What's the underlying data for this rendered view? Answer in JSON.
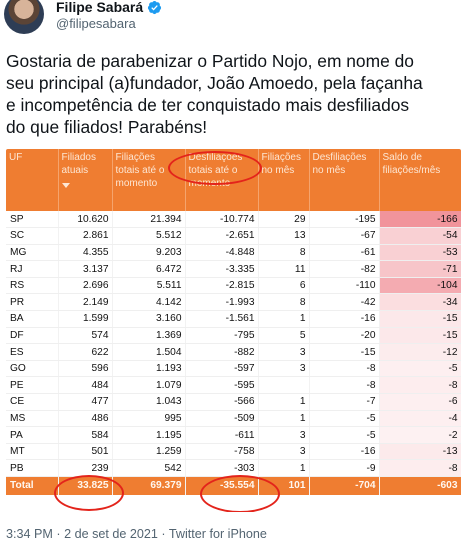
{
  "tweet": {
    "author_name": "Filipe Sabará",
    "author_handle": "@filipesabara",
    "text_lines": [
      "Gostaria de parabenizar o Partido Nojo, em nome do",
      "seu principal (a)fundador, João Amoedo, pela façanha",
      "e incompetência de ter conquistado mais desfiliados",
      "do que filiados! Parabéns!"
    ],
    "timestamp": "3:34 PM · 2 de set de 2021 · Twitter for iPhone",
    "verified_icon": "verified-badge-icon"
  },
  "table": {
    "headers": [
      "UF",
      "Filiados atuais",
      "Filiações totais até o momento",
      "Desfiliações totais até o momento",
      "Filiações no mês",
      "Desfiliações no mês",
      "Saldo de filiações/mês"
    ],
    "rows": [
      {
        "uf": "SP",
        "filiados": "10.620",
        "filiacoes": "21.394",
        "desfiliacoes": "-10.774",
        "fil_mes": "29",
        "desf_mes": "-195",
        "saldo": "-166"
      },
      {
        "uf": "SC",
        "filiados": "2.861",
        "filiacoes": "5.512",
        "desfiliacoes": "-2.651",
        "fil_mes": "13",
        "desf_mes": "-67",
        "saldo": "-54"
      },
      {
        "uf": "MG",
        "filiados": "4.355",
        "filiacoes": "9.203",
        "desfiliacoes": "-4.848",
        "fil_mes": "8",
        "desf_mes": "-61",
        "saldo": "-53"
      },
      {
        "uf": "RJ",
        "filiados": "3.137",
        "filiacoes": "6.472",
        "desfiliacoes": "-3.335",
        "fil_mes": "11",
        "desf_mes": "-82",
        "saldo": "-71"
      },
      {
        "uf": "RS",
        "filiados": "2.696",
        "filiacoes": "5.511",
        "desfiliacoes": "-2.815",
        "fil_mes": "6",
        "desf_mes": "-110",
        "saldo": "-104"
      },
      {
        "uf": "PR",
        "filiados": "2.149",
        "filiacoes": "4.142",
        "desfiliacoes": "-1.993",
        "fil_mes": "8",
        "desf_mes": "-42",
        "saldo": "-34"
      },
      {
        "uf": "BA",
        "filiados": "1.599",
        "filiacoes": "3.160",
        "desfiliacoes": "-1.561",
        "fil_mes": "1",
        "desf_mes": "-16",
        "saldo": "-15"
      },
      {
        "uf": "DF",
        "filiados": "574",
        "filiacoes": "1.369",
        "desfiliacoes": "-795",
        "fil_mes": "5",
        "desf_mes": "-20",
        "saldo": "-15"
      },
      {
        "uf": "ES",
        "filiados": "622",
        "filiacoes": "1.504",
        "desfiliacoes": "-882",
        "fil_mes": "3",
        "desf_mes": "-15",
        "saldo": "-12"
      },
      {
        "uf": "GO",
        "filiados": "596",
        "filiacoes": "1.193",
        "desfiliacoes": "-597",
        "fil_mes": "3",
        "desf_mes": "-8",
        "saldo": "-5"
      },
      {
        "uf": "PE",
        "filiados": "484",
        "filiacoes": "1.079",
        "desfiliacoes": "-595",
        "fil_mes": "",
        "desf_mes": "-8",
        "saldo": "-8"
      },
      {
        "uf": "CE",
        "filiados": "477",
        "filiacoes": "1.043",
        "desfiliacoes": "-566",
        "fil_mes": "1",
        "desf_mes": "-7",
        "saldo": "-6"
      },
      {
        "uf": "MS",
        "filiados": "486",
        "filiacoes": "995",
        "desfiliacoes": "-509",
        "fil_mes": "1",
        "desf_mes": "-5",
        "saldo": "-4"
      },
      {
        "uf": "PA",
        "filiados": "584",
        "filiacoes": "1.195",
        "desfiliacoes": "-611",
        "fil_mes": "3",
        "desf_mes": "-5",
        "saldo": "-2"
      },
      {
        "uf": "MT",
        "filiados": "501",
        "filiacoes": "1.259",
        "desfiliacoes": "-758",
        "fil_mes": "3",
        "desf_mes": "-16",
        "saldo": "-13"
      },
      {
        "uf": "PB",
        "filiados": "239",
        "filiacoes": "542",
        "desfiliacoes": "-303",
        "fil_mes": "1",
        "desf_mes": "-9",
        "saldo": "-8"
      }
    ],
    "total": {
      "uf": "Total",
      "filiados": "33.825",
      "filiacoes": "69.379",
      "desfiliacoes": "-35.554",
      "fil_mes": "101",
      "desf_mes": "-704",
      "saldo": "-603"
    },
    "saldo_shading": [
      0.85,
      0.3,
      0.3,
      0.4,
      0.65,
      0.18,
      0.08,
      0.08,
      0.05,
      0.02,
      0.03,
      0.02,
      0.01,
      0.0,
      0.06,
      0.03
    ],
    "colors": {
      "header": "#ef7d31",
      "saldo_base": "#e8505b",
      "annotation": "#e3241b"
    }
  }
}
